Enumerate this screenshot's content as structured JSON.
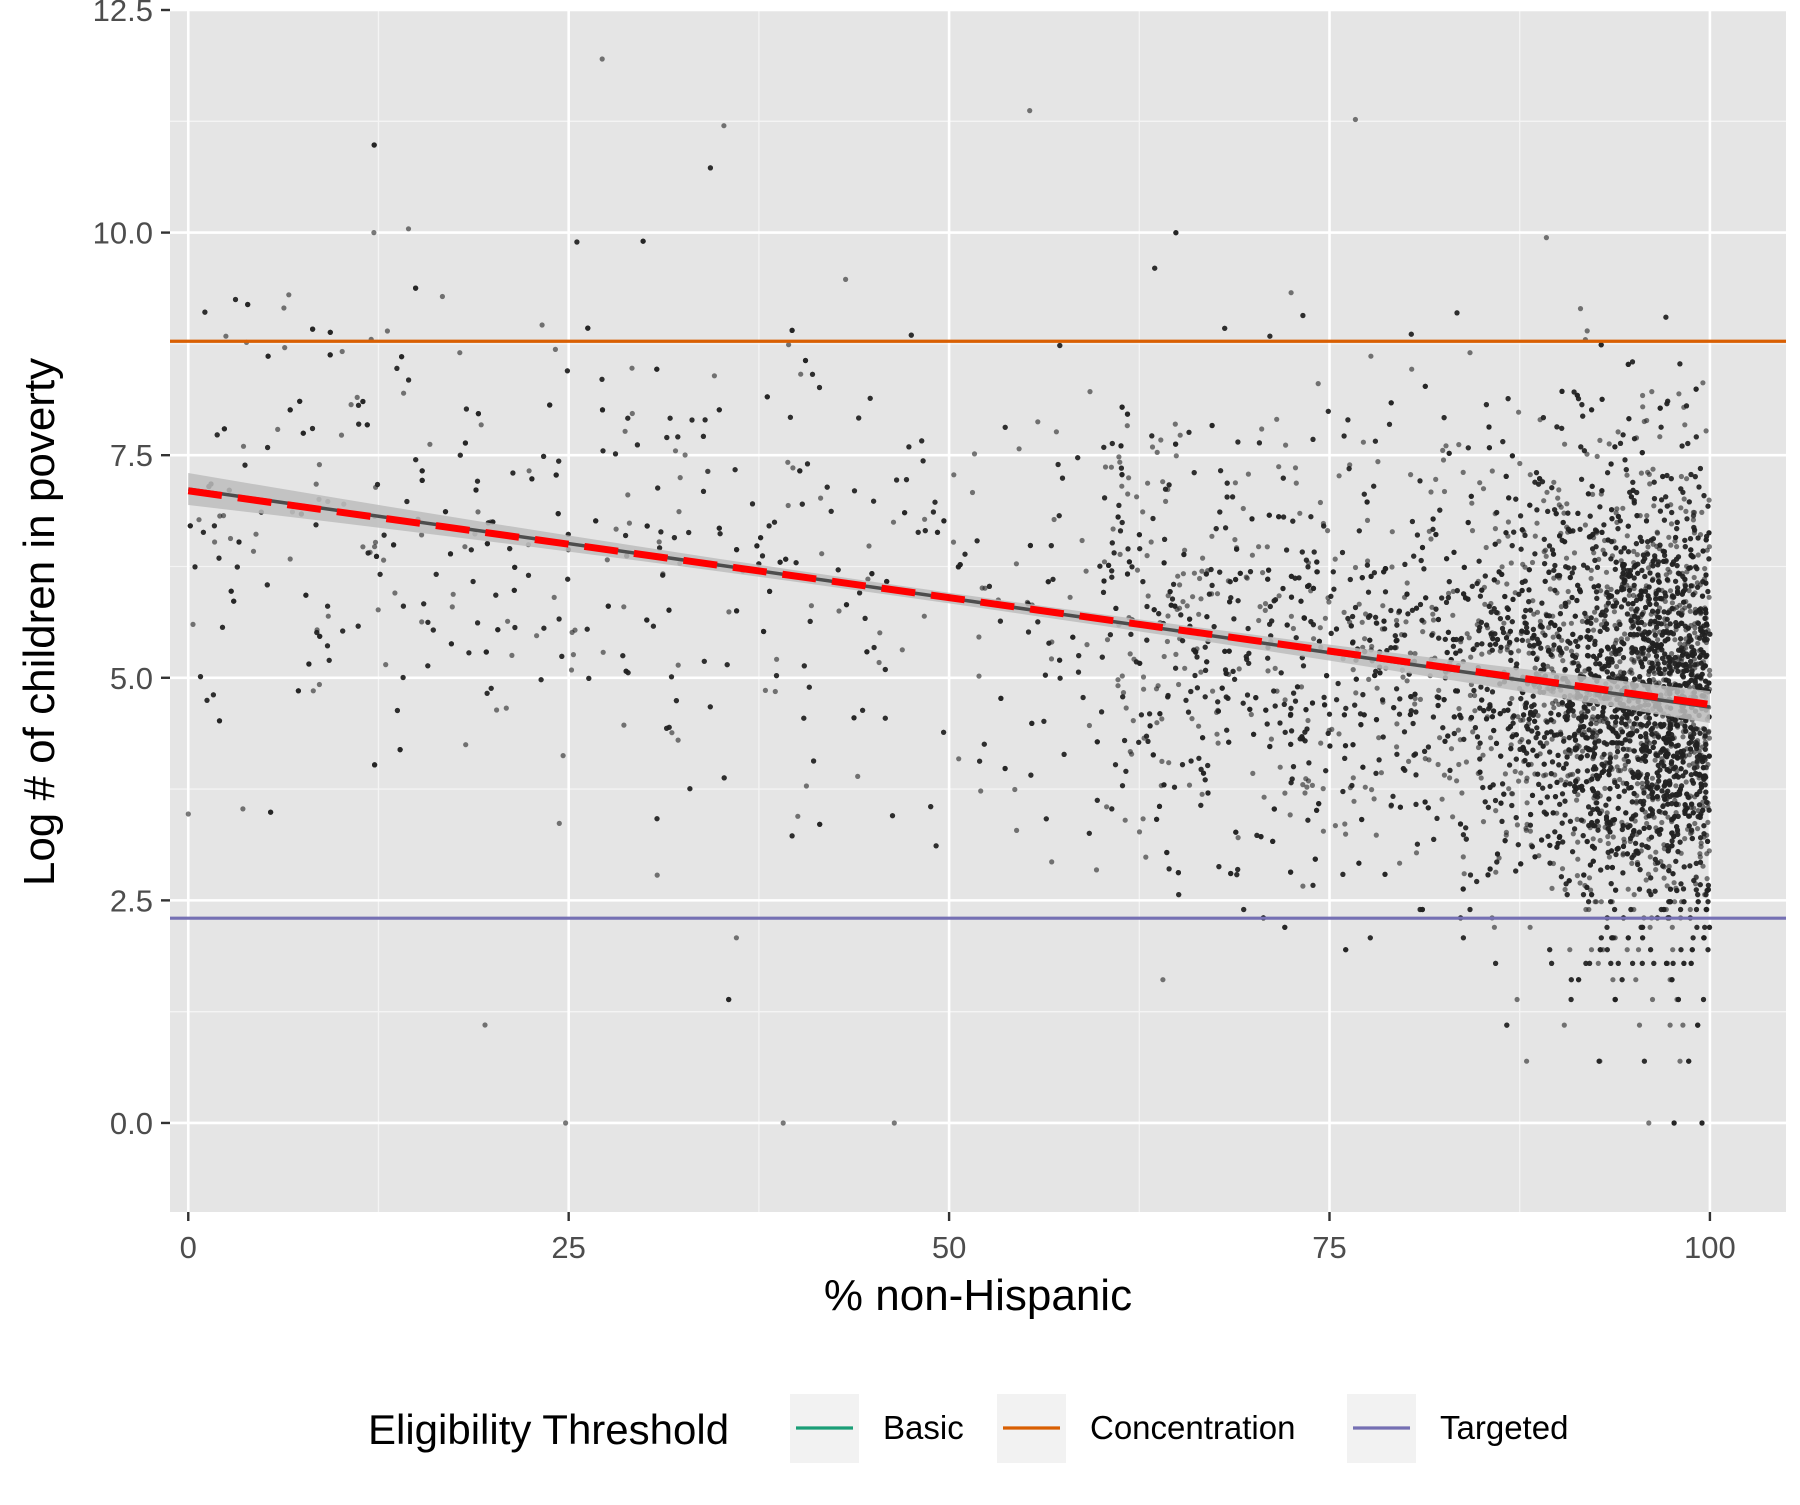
{
  "chart_data": {
    "type": "scatter",
    "title": "",
    "xlabel": "% non-Hispanic",
    "ylabel": "Log # of children in poverty",
    "xlim": [
      -1.2,
      105
    ],
    "ylim": [
      -1.0,
      12.5
    ],
    "x_ticks": [
      0,
      25,
      50,
      75,
      100
    ],
    "x_tick_labels": [
      "0",
      "25",
      "50",
      "75",
      "100"
    ],
    "y_ticks": [
      0,
      2.5,
      5,
      7.5,
      10,
      12.5
    ],
    "y_tick_labels": [
      "0.0",
      "2.5",
      "5.0",
      "7.5",
      "10.0",
      "12.5"
    ],
    "grid": true,
    "panel_background": "#E5E5E5",
    "point_color": "#222222",
    "approximate_point_count": 9000,
    "point_distribution": [
      {
        "x_range": [
          0,
          100
        ],
        "description": "sparse for low x, dense near x=100"
      }
    ],
    "sample_points": [
      {
        "x": 27.2,
        "y": 11.95
      },
      {
        "x": 35.2,
        "y": 11.2
      },
      {
        "x": 55.3,
        "y": 11.37
      },
      {
        "x": 76.7,
        "y": 11.27
      },
      {
        "x": 12.2,
        "y": 10.0
      },
      {
        "x": 24.8,
        "y": 0.0
      },
      {
        "x": 46.4,
        "y": 0.0
      },
      {
        "x": 39.1,
        "y": 0.0
      },
      {
        "x": 19.5,
        "y": 1.1
      },
      {
        "x": 0.0,
        "y": 3.47
      }
    ],
    "fit_line": {
      "x": [
        0,
        100
      ],
      "y": [
        7.12,
        4.67
      ],
      "style": "solid",
      "color": "#4D4D4D",
      "confidence_band_color": "#BDBDBD"
    },
    "dashed_fit_line": {
      "x": [
        0,
        100
      ],
      "y": [
        7.1,
        4.7
      ],
      "style": "dashed",
      "color": "#FF0000"
    },
    "hlines": [
      {
        "name": "Concentration",
        "y": 8.78,
        "color": "#D95F02"
      },
      {
        "name": "Targeted",
        "y": 2.3,
        "color": "#7570B3"
      }
    ],
    "legend": {
      "title": "Eligibility Threshold",
      "position": "bottom",
      "entries": [
        {
          "label": "Basic",
          "color": "#1B9E77"
        },
        {
          "label": "Concentration",
          "color": "#D95F02"
        },
        {
          "label": "Targeted",
          "color": "#7570B3"
        }
      ]
    }
  }
}
